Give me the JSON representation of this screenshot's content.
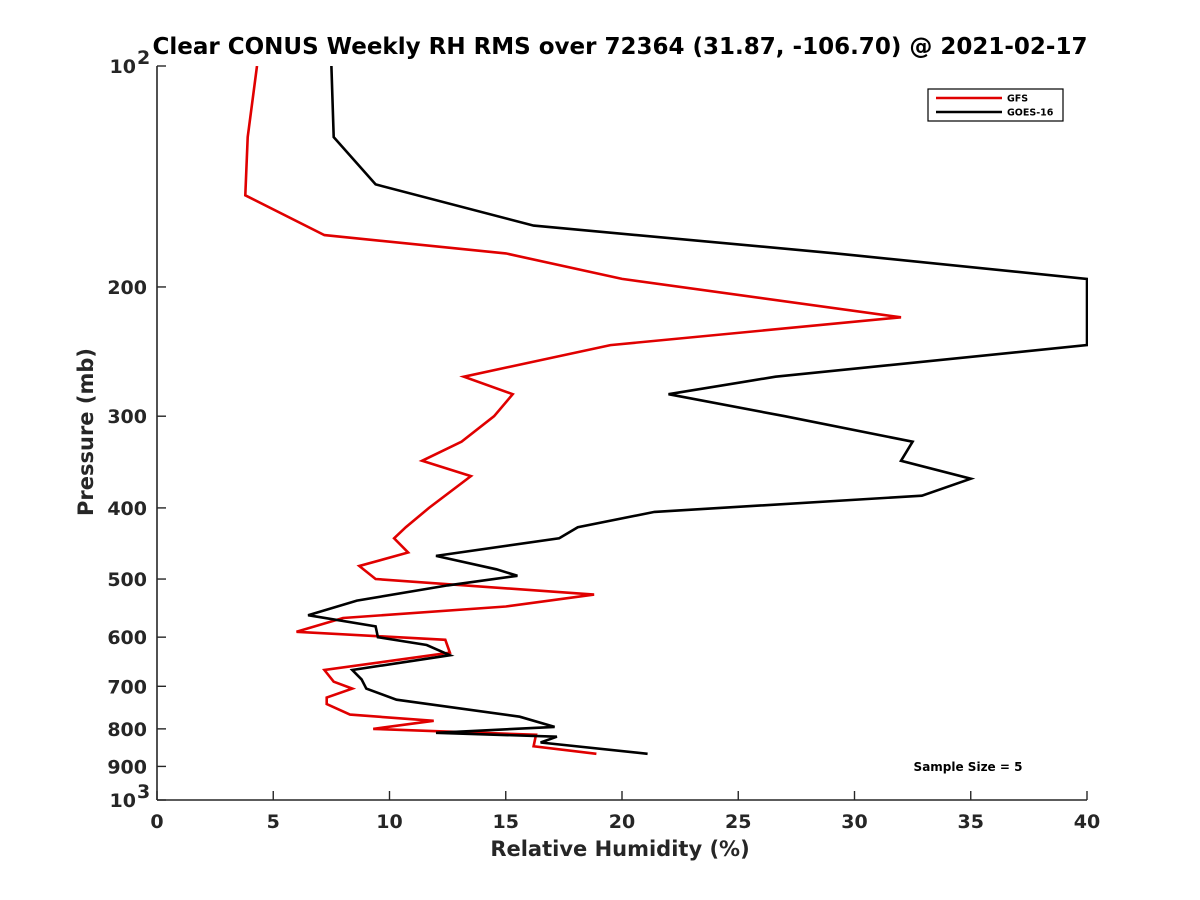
{
  "chart_data": {
    "type": "line",
    "title": "Clear CONUS Weekly RH RMS over 72364 (31.87, -106.70) @ 2021-02-17",
    "xlabel": "Relative Humidity (%)",
    "ylabel": "Pressure (mb)",
    "xlim": [
      0,
      40
    ],
    "ylim": [
      100,
      1000
    ],
    "y_scale": "log",
    "y_reversed": true,
    "x_ticks": [
      "0",
      "5",
      "10",
      "15",
      "20",
      "25",
      "30",
      "35",
      "40"
    ],
    "y_ticks": [
      {
        "value": 100,
        "label": "10",
        "sup": "2"
      },
      {
        "value": 200,
        "label": "200",
        "sup": ""
      },
      {
        "value": 300,
        "label": "300",
        "sup": ""
      },
      {
        "value": 400,
        "label": "400",
        "sup": ""
      },
      {
        "value": 500,
        "label": "500",
        "sup": ""
      },
      {
        "value": 600,
        "label": "600",
        "sup": ""
      },
      {
        "value": 700,
        "label": "700",
        "sup": ""
      },
      {
        "value": 800,
        "label": "800",
        "sup": ""
      },
      {
        "value": 900,
        "label": "900",
        "sup": ""
      },
      {
        "value": 1000,
        "label": "10",
        "sup": "3"
      }
    ],
    "legend_position": "top-right",
    "grid": false,
    "annotation": "Sample Size = 5",
    "series": [
      {
        "name": "GFS",
        "color": "#e00000",
        "points": [
          [
            4.3,
            100
          ],
          [
            3.9,
            125
          ],
          [
            3.8,
            150
          ],
          [
            7.2,
            170
          ],
          [
            15.0,
            180
          ],
          [
            20.0,
            195
          ],
          [
            32.0,
            220
          ],
          [
            19.5,
            240
          ],
          [
            13.2,
            265
          ],
          [
            15.3,
            280
          ],
          [
            14.5,
            300
          ],
          [
            13.1,
            325
          ],
          [
            11.4,
            345
          ],
          [
            13.5,
            362
          ],
          [
            11.7,
            400
          ],
          [
            10.7,
            425
          ],
          [
            10.2,
            440
          ],
          [
            10.8,
            460
          ],
          [
            8.7,
            480
          ],
          [
            9.4,
            500
          ],
          [
            18.8,
            525
          ],
          [
            15.0,
            545
          ],
          [
            8.0,
            565
          ],
          [
            6.0,
            590
          ],
          [
            12.4,
            605
          ],
          [
            12.6,
            630
          ],
          [
            7.2,
            665
          ],
          [
            7.6,
            690
          ],
          [
            8.4,
            705
          ],
          [
            7.3,
            725
          ],
          [
            7.3,
            740
          ],
          [
            8.3,
            765
          ],
          [
            11.9,
            780
          ],
          [
            9.3,
            800
          ],
          [
            16.3,
            815
          ],
          [
            16.2,
            845
          ],
          [
            18.9,
            865
          ]
        ]
      },
      {
        "name": "GOES-16",
        "color": "#000000",
        "points": [
          [
            7.5,
            100
          ],
          [
            7.6,
            125
          ],
          [
            9.4,
            145
          ],
          [
            16.2,
            165
          ],
          [
            29.2,
            180
          ],
          [
            40.0,
            195
          ],
          [
            40.0,
            240
          ],
          [
            26.6,
            265
          ],
          [
            22.0,
            280
          ],
          [
            27.0,
            300
          ],
          [
            32.5,
            325
          ],
          [
            32.0,
            345
          ],
          [
            35.0,
            365
          ],
          [
            32.9,
            385
          ],
          [
            21.4,
            405
          ],
          [
            18.1,
            425
          ],
          [
            17.3,
            440
          ],
          [
            12.0,
            465
          ],
          [
            14.6,
            485
          ],
          [
            15.5,
            495
          ],
          [
            12.5,
            510
          ],
          [
            8.6,
            535
          ],
          [
            6.5,
            560
          ],
          [
            9.4,
            580
          ],
          [
            9.5,
            600
          ],
          [
            11.6,
            615
          ],
          [
            12.6,
            635
          ],
          [
            8.4,
            665
          ],
          [
            8.8,
            685
          ],
          [
            9.0,
            705
          ],
          [
            10.3,
            730
          ],
          [
            15.6,
            770
          ],
          [
            17.1,
            795
          ],
          [
            12.0,
            810
          ],
          [
            17.2,
            820
          ],
          [
            16.5,
            835
          ],
          [
            21.1,
            865
          ]
        ]
      }
    ]
  }
}
